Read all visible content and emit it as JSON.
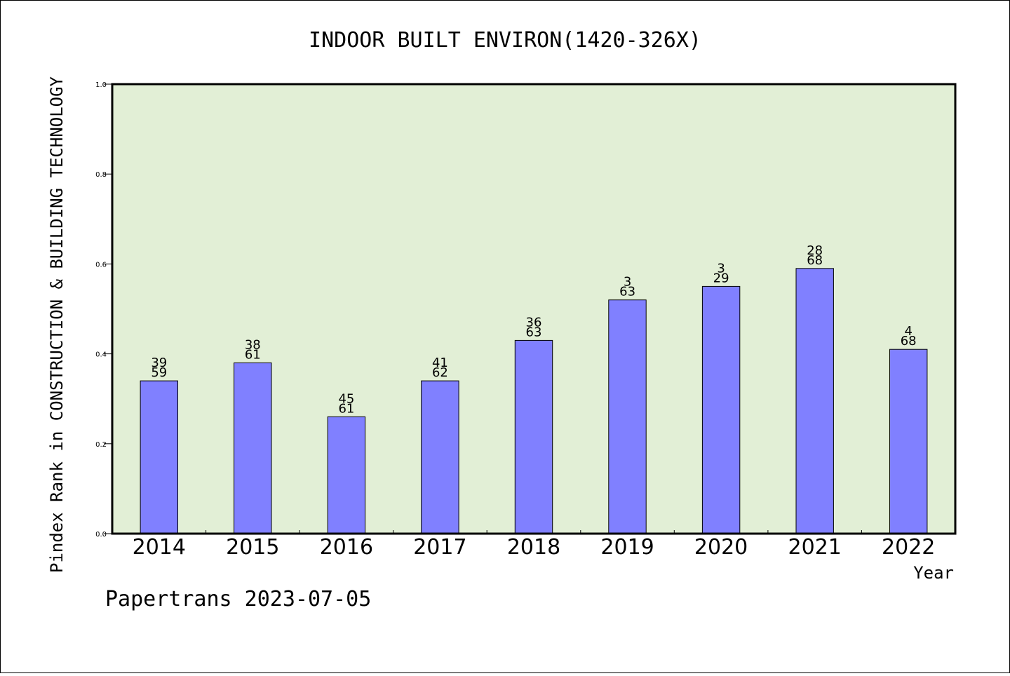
{
  "footer": "Papertrans 2023-07-05",
  "colors": {
    "plot_background": "#e2efd6",
    "bar_fill": "#8080ff",
    "bar_stroke": "#000000"
  },
  "chart_data": {
    "type": "bar",
    "title": "INDOOR BUILT ENVIRON(1420-326X)",
    "xlabel": "Year",
    "ylabel": "Pindex Rank in CONSTRUCTION & BUILDING TECHNOLOGY",
    "ylim": [
      0.0,
      1.0
    ],
    "yticks": [
      "0.0",
      "0.2",
      "0.4",
      "0.6",
      "0.8",
      "1.0"
    ],
    "grid": false,
    "categories": [
      "2014",
      "2015",
      "2016",
      "2017",
      "2018",
      "2019",
      "2020",
      "2021",
      "2022"
    ],
    "values": [
      0.34,
      0.38,
      0.26,
      0.34,
      0.43,
      0.52,
      0.55,
      0.59,
      0.41
    ],
    "labels_top": [
      "39",
      "38",
      "45",
      "41",
      "36",
      "3",
      "3",
      "28",
      "4"
    ],
    "labels_bottom": [
      "59",
      "61",
      "61",
      "62",
      "63",
      "63",
      "29",
      "68",
      "68"
    ]
  }
}
